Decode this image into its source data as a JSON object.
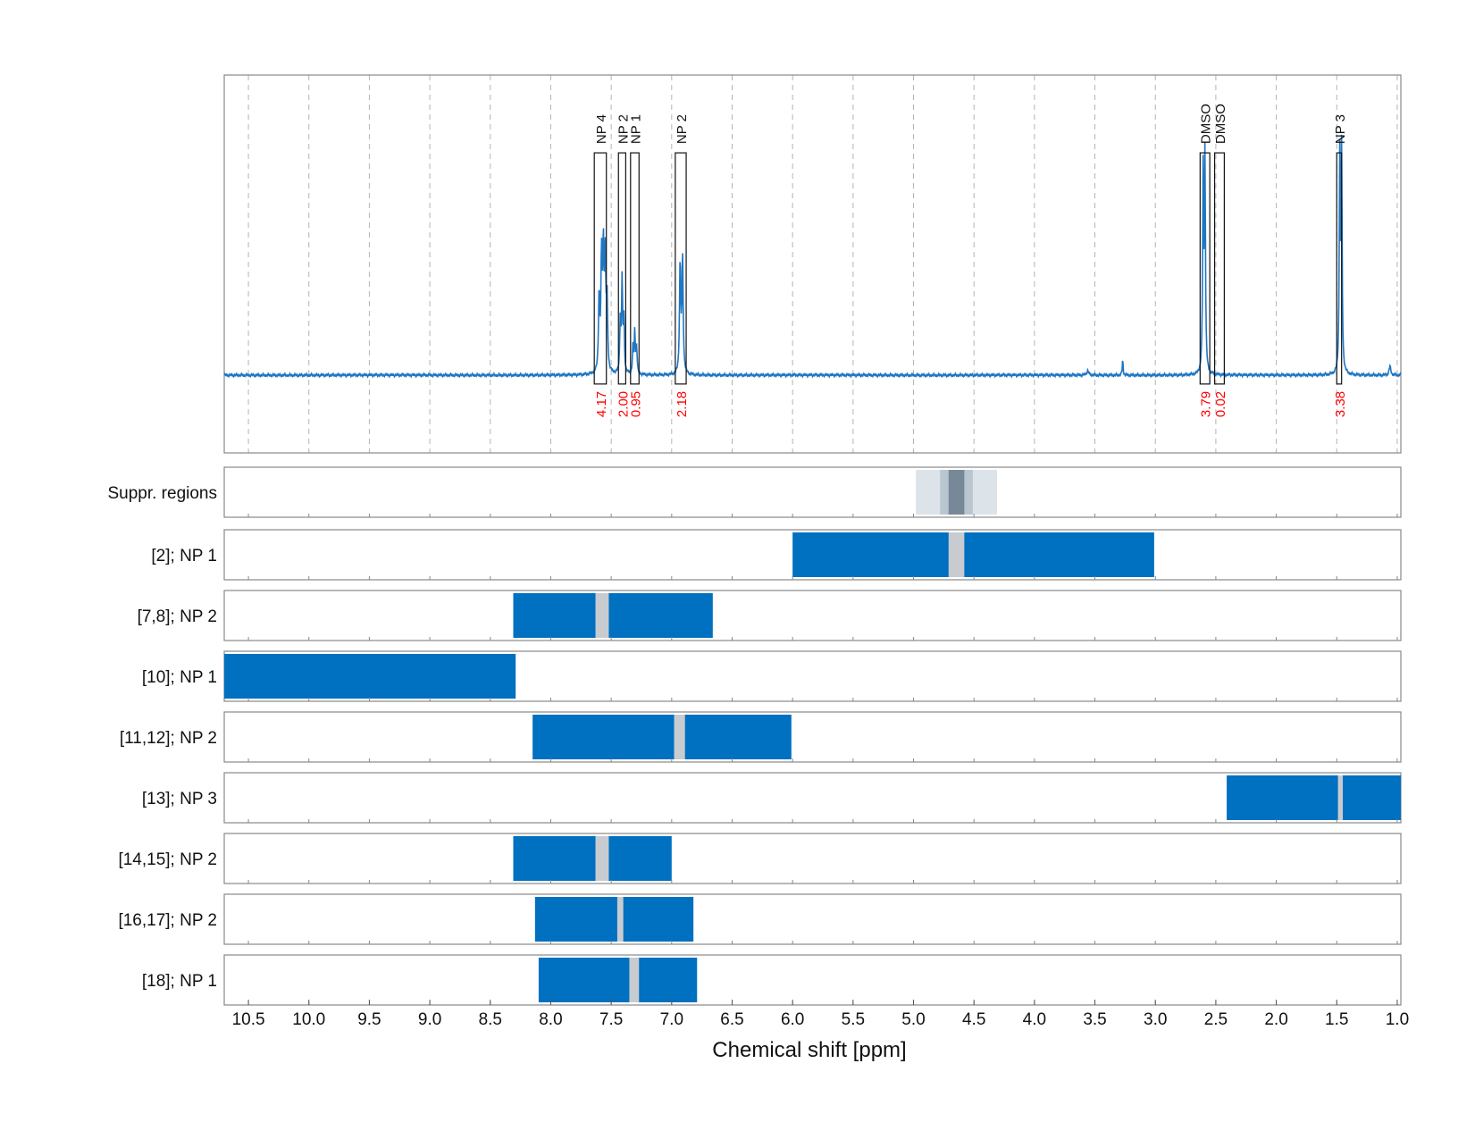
{
  "chart_data": {
    "type": "nmr-spectrum-with-region-tracks",
    "x_axis": {
      "label": "Chemical shift [ppm]",
      "range": [
        10.7,
        0.97
      ],
      "reversed": true,
      "ticks": [
        10.5,
        10.0,
        9.5,
        9.0,
        8.5,
        8.0,
        7.5,
        7.0,
        6.5,
        6.0,
        5.5,
        5.0,
        4.5,
        4.0,
        3.5,
        3.0,
        2.5,
        2.0,
        1.5,
        1.0
      ],
      "tick_labels": [
        "10.5",
        "10.0",
        "9.5",
        "9.0",
        "8.5",
        "8.0",
        "7.5",
        "7.0",
        "6.5",
        "6.0",
        "5.5",
        "5.0",
        "4.5",
        "4.0",
        "3.5",
        "3.0",
        "2.5",
        "2.0",
        "1.5",
        "1.0"
      ]
    },
    "grid": "vertical-dashed",
    "colors": {
      "spectrum": "#1f77c4",
      "region": "#0070c0",
      "integral": "#ff0000",
      "gap": "#c8ccd0",
      "suppr_light": "#dce3e9",
      "suppr_mid": "#b9c5cf",
      "suppr_dark": "#778899"
    },
    "spectrum": {
      "y_range": [
        -0.35,
        1.35
      ],
      "peaks": [
        {
          "ppm": 7.6,
          "height": 0.34,
          "width": 0.006
        },
        {
          "ppm": 7.58,
          "height": 0.5,
          "width": 0.006
        },
        {
          "ppm": 7.565,
          "height": 0.52,
          "width": 0.006
        },
        {
          "ppm": 7.55,
          "height": 0.5,
          "width": 0.006
        },
        {
          "ppm": 7.535,
          "height": 0.32,
          "width": 0.006
        },
        {
          "ppm": 7.425,
          "height": 0.24,
          "width": 0.005
        },
        {
          "ppm": 7.41,
          "height": 0.42,
          "width": 0.005
        },
        {
          "ppm": 7.395,
          "height": 0.24,
          "width": 0.005
        },
        {
          "ppm": 7.32,
          "height": 0.12,
          "width": 0.005
        },
        {
          "ppm": 7.305,
          "height": 0.19,
          "width": 0.005
        },
        {
          "ppm": 7.29,
          "height": 0.12,
          "width": 0.005
        },
        {
          "ppm": 6.93,
          "height": 0.5,
          "width": 0.006
        },
        {
          "ppm": 6.91,
          "height": 0.52,
          "width": 0.006
        },
        {
          "ppm": 2.605,
          "height": 0.9,
          "width": 0.005
        },
        {
          "ppm": 2.59,
          "height": 0.96,
          "width": 0.005
        },
        {
          "ppm": 1.475,
          "height": 0.97,
          "width": 0.005
        },
        {
          "ppm": 1.46,
          "height": 0.98,
          "width": 0.005
        },
        {
          "ppm": 3.56,
          "height": 0.02,
          "width": 0.01
        },
        {
          "ppm": 3.27,
          "height": 0.07,
          "width": 0.004
        },
        {
          "ppm": 1.06,
          "height": 0.04,
          "width": 0.008
        }
      ],
      "regions": [
        {
          "label": "NP 4",
          "integral": "4.17",
          "from": 7.64,
          "to": 7.54
        },
        {
          "label": "NP 2",
          "integral": "2.00",
          "from": 7.44,
          "to": 7.38
        },
        {
          "label": "NP 1",
          "integral": "0.95",
          "from": 7.34,
          "to": 7.27
        },
        {
          "label": "NP 2",
          "integral": "2.18",
          "from": 6.97,
          "to": 6.88
        },
        {
          "label": "DMSO",
          "integral": "3.79",
          "from": 2.63,
          "to": 2.55
        },
        {
          "label": "DMSO",
          "integral": "0.02",
          "from": 2.51,
          "to": 2.43
        },
        {
          "label": "NP 3",
          "integral": "3.38",
          "from": 1.5,
          "to": 1.46
        }
      ]
    },
    "tracks": [
      {
        "label": "Suppr. regions",
        "kind": "suppression",
        "bands": [
          {
            "from": 4.98,
            "to": 4.31,
            "shade": "light"
          },
          {
            "from": 4.78,
            "to": 4.51,
            "shade": "mid"
          },
          {
            "from": 4.71,
            "to": 4.58,
            "shade": "dark"
          }
        ]
      },
      {
        "label": "[2]; NP 1",
        "from": 6.0,
        "to": 3.01,
        "gap": [
          4.71,
          4.58
        ]
      },
      {
        "label": "[7,8]; NP 2",
        "from": 8.31,
        "to": 6.66,
        "gap": [
          7.63,
          7.52
        ]
      },
      {
        "label": "[10]; NP 1",
        "from": 10.7,
        "to": 8.29,
        "gap": null
      },
      {
        "label": "[11,12]; NP 2",
        "from": 8.15,
        "to": 6.01,
        "gap": [
          6.98,
          6.89
        ]
      },
      {
        "label": "[13]; NP 3",
        "from": 2.41,
        "to": 0.97,
        "gap": [
          1.49,
          1.45
        ]
      },
      {
        "label": "[14,15]; NP 2",
        "from": 8.31,
        "to": 7.0,
        "gap": [
          7.63,
          7.52
        ]
      },
      {
        "label": "[16,17]; NP 2",
        "from": 8.13,
        "to": 6.82,
        "gap": [
          7.45,
          7.4
        ]
      },
      {
        "label": "[18]; NP 1",
        "from": 8.1,
        "to": 6.79,
        "gap": [
          7.35,
          7.27
        ]
      }
    ]
  }
}
